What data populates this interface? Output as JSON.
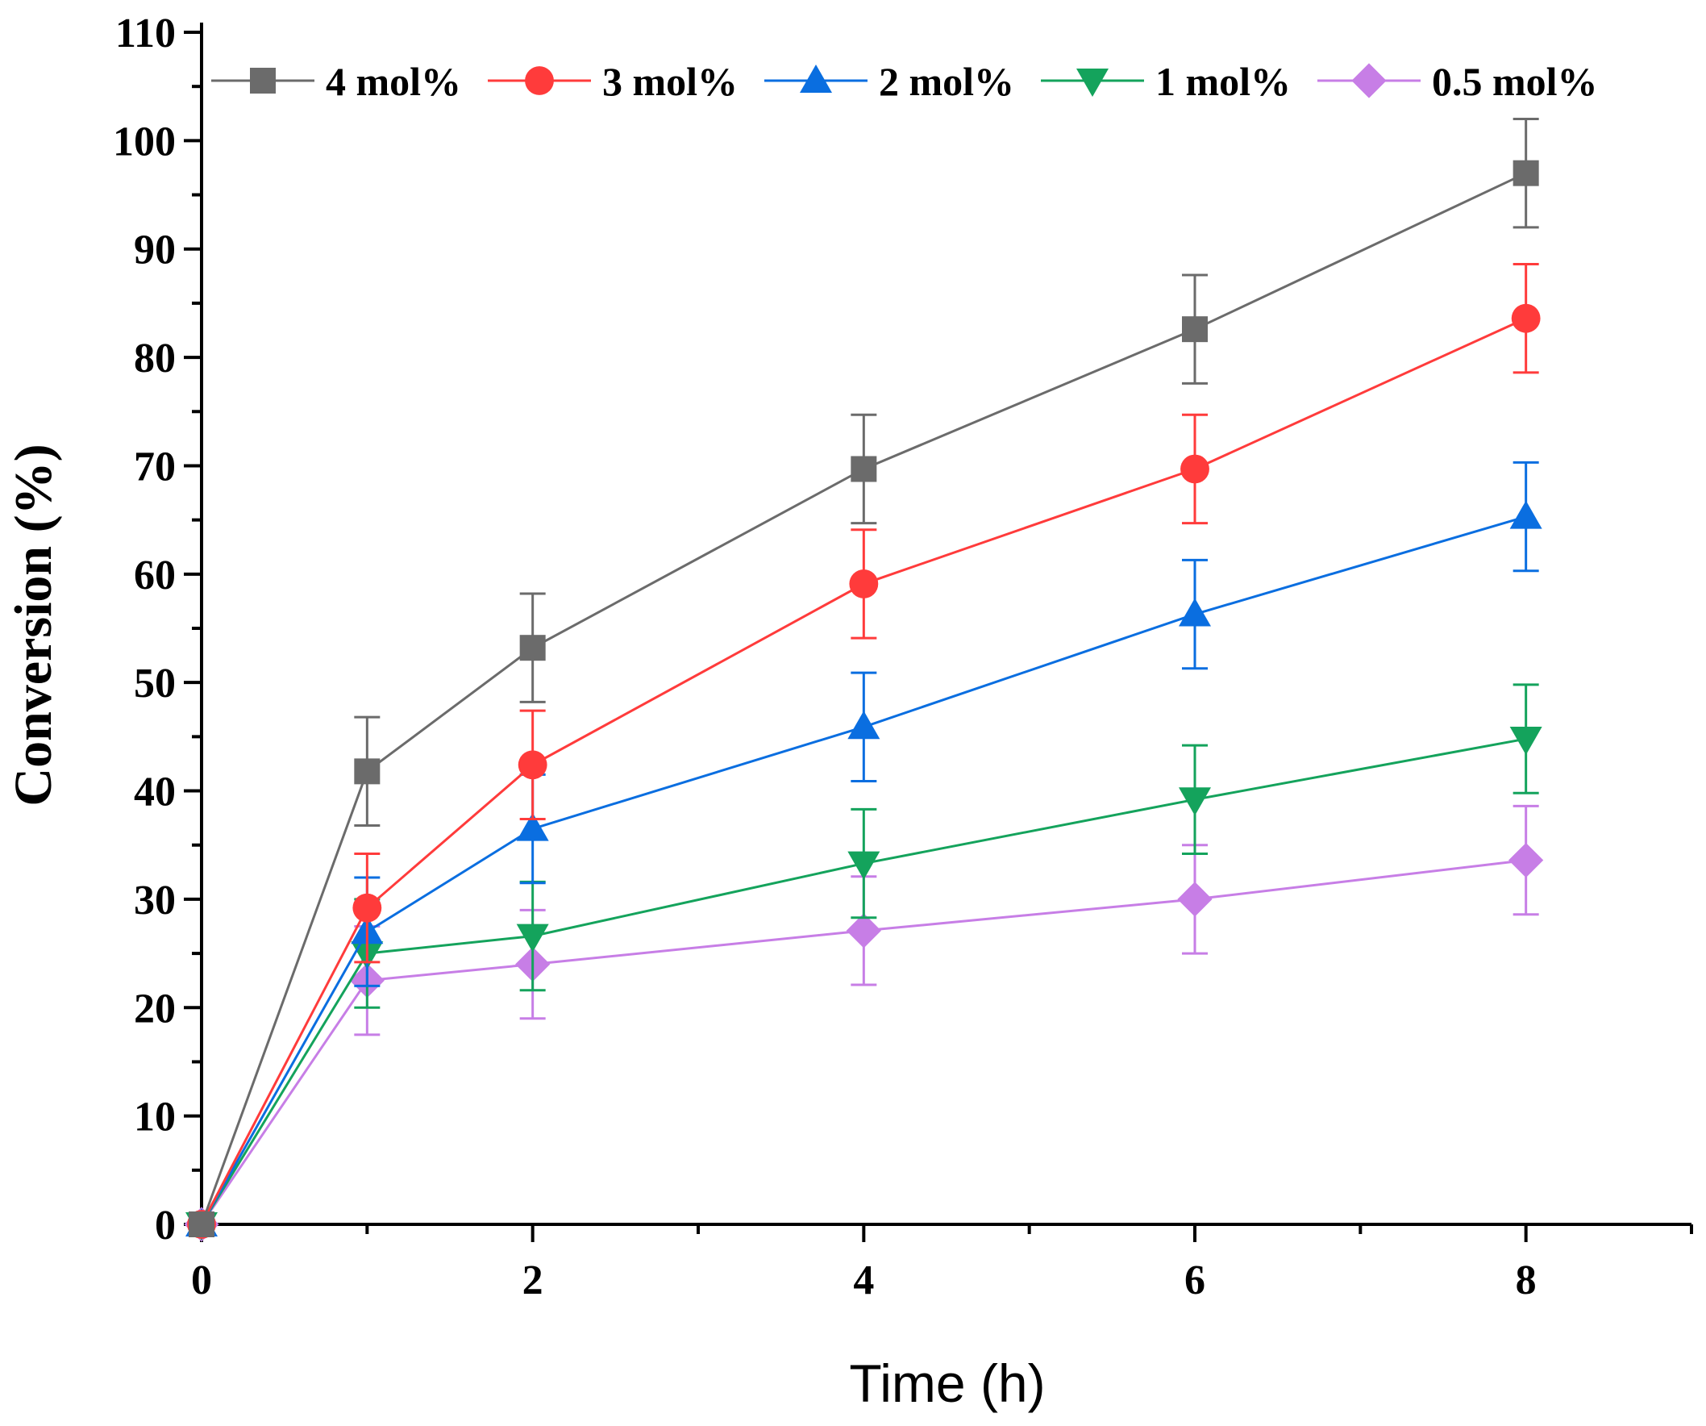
{
  "chart_data": {
    "type": "line",
    "title": "",
    "xlabel": "Time (h)",
    "ylabel": "Conversion (%)",
    "xlim": [
      0,
      9
    ],
    "ylim": [
      0,
      110
    ],
    "xticks": [
      0,
      2,
      4,
      6,
      8
    ],
    "xtick_labels": [
      "0",
      "2",
      "4",
      "6",
      "8"
    ],
    "yticks": [
      0,
      10,
      20,
      30,
      40,
      50,
      60,
      70,
      80,
      90,
      100,
      110
    ],
    "ytick_labels": [
      "0",
      "10",
      "20",
      "30",
      "40",
      "50",
      "60",
      "70",
      "80",
      "90",
      "100",
      "110"
    ],
    "grid": false,
    "legend_position": "top",
    "error_bars": true,
    "series": [
      {
        "name": "4 mol%",
        "color": "#6b6b6b",
        "marker": "square",
        "x": [
          0,
          1,
          2,
          4,
          6,
          8
        ],
        "y": [
          0,
          41.8,
          53.2,
          69.7,
          82.6,
          97.0
        ],
        "error": [
          0,
          5.0,
          5.0,
          5.0,
          5.0,
          5.0
        ]
      },
      {
        "name": "3 mol%",
        "color": "#ff3b3b",
        "marker": "circle",
        "x": [
          0,
          1,
          2,
          4,
          6,
          8
        ],
        "y": [
          0,
          29.2,
          42.4,
          59.1,
          69.7,
          83.6
        ],
        "error": [
          0,
          5.0,
          5.0,
          5.0,
          5.0,
          5.0
        ]
      },
      {
        "name": "2 mol%",
        "color": "#0a6ee0",
        "marker": "triangle-up",
        "x": [
          0,
          1,
          2,
          4,
          6,
          8
        ],
        "y": [
          0,
          27.0,
          36.5,
          45.9,
          56.3,
          65.3
        ],
        "error": [
          0,
          5.0,
          5.0,
          5.0,
          5.0,
          5.0
        ]
      },
      {
        "name": "1 mol%",
        "color": "#14a35c",
        "marker": "triangle-down",
        "x": [
          0,
          1,
          2,
          4,
          6,
          8
        ],
        "y": [
          0,
          25.0,
          26.6,
          33.3,
          39.2,
          44.8
        ],
        "error": [
          0,
          5.0,
          5.0,
          5.0,
          5.0,
          5.0
        ]
      },
      {
        "name": "0.5 mol%",
        "color": "#c77ee6",
        "marker": "diamond",
        "x": [
          0,
          1,
          2,
          4,
          6,
          8
        ],
        "y": [
          0,
          22.5,
          24.0,
          27.1,
          30.0,
          33.6
        ],
        "error": [
          0,
          5.0,
          5.0,
          5.0,
          5.0,
          5.0
        ]
      }
    ]
  }
}
